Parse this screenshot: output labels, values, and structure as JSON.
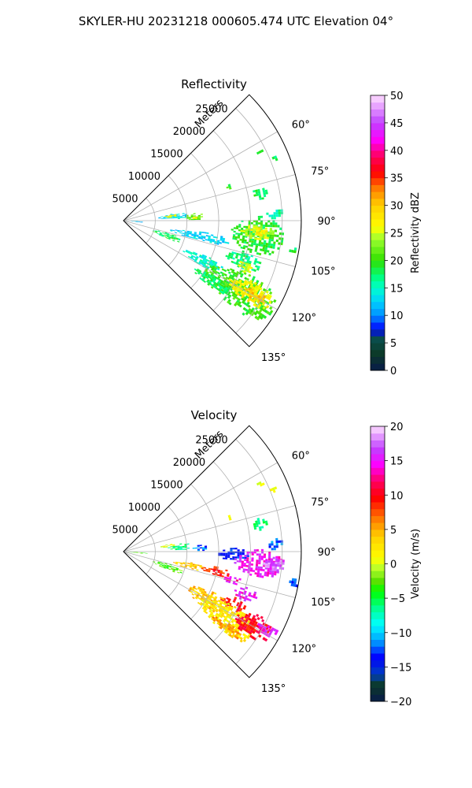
{
  "figure_title": "SKYLER-HU  20231218  000605.474 UTC Elevation 04°",
  "chart_data": [
    {
      "type": "heatmap",
      "projection": "polar-sector",
      "title": "Reflectivity",
      "radial_label": "Meters",
      "radial_ticks": [
        5000,
        10000,
        15000,
        20000,
        25000
      ],
      "radial_tick_labels": [
        "5000",
        "10000",
        "15000",
        "20000",
        "25000"
      ],
      "rmax": 28000,
      "azimuth_range_deg": [
        45,
        135
      ],
      "azimuth_ticks": [
        60,
        75,
        90,
        105,
        120,
        135
      ],
      "azimuth_tick_labels": [
        "60°",
        "75°",
        "90°",
        "105°",
        "120°",
        "135°"
      ],
      "grid": true,
      "colorbar": {
        "label": "Reflectivity dBZ",
        "range": [
          0,
          50
        ],
        "ticks": [
          0,
          5,
          10,
          15,
          20,
          25,
          30,
          35,
          40,
          45,
          50
        ],
        "tick_labels": [
          "0",
          "5",
          "10",
          "15",
          "20",
          "25",
          "30",
          "35",
          "40",
          "45",
          "50"
        ]
      },
      "echo_regions": [
        {
          "az": [
            62,
            64
          ],
          "r": [
            23500,
            24500
          ],
          "value": 20
        },
        {
          "az": [
            66,
            68
          ],
          "r": [
            25000,
            26000
          ],
          "value": 18
        },
        {
          "az": [
            71,
            73
          ],
          "r": [
            17000,
            17800
          ],
          "value": 20
        },
        {
          "az": [
            76,
            81
          ],
          "r": [
            20500,
            22800
          ],
          "value": 18
        },
        {
          "az": [
            82,
            88
          ],
          "r": [
            5500,
            10000
          ],
          "value": 13
        },
        {
          "az": [
            82,
            86
          ],
          "r": [
            6500,
            8500
          ],
          "value": 26
        },
        {
          "az": [
            84,
            89
          ],
          "r": [
            9500,
            13000
          ],
          "value": 22
        },
        {
          "az": [
            86,
            88
          ],
          "r": [
            10500,
            11500
          ],
          "value": 27
        },
        {
          "az": [
            85,
            89
          ],
          "r": [
            22500,
            25000
          ],
          "value": 16
        },
        {
          "az": [
            88,
            104
          ],
          "r": [
            17000,
            25000
          ],
          "value": 19
        },
        {
          "az": [
            91,
            98
          ],
          "r": [
            18500,
            23500
          ],
          "value": 25
        },
        {
          "az": [
            92,
            96
          ],
          "r": [
            20500,
            22500
          ],
          "value": 28
        },
        {
          "az": [
            98,
            101
          ],
          "r": [
            26500,
            28000
          ],
          "value": 18
        },
        {
          "az": [
            92,
            96
          ],
          "r": [
            0,
            3500
          ],
          "value": 12
        },
        {
          "az": [
            98,
            104
          ],
          "r": [
            7500,
            17000
          ],
          "value": 13
        },
        {
          "az": [
            105,
            112
          ],
          "r": [
            4500,
            9500
          ],
          "value": 18
        },
        {
          "az": [
            104,
            112
          ],
          "r": [
            17000,
            22500
          ],
          "value": 17
        },
        {
          "az": [
            108,
            113
          ],
          "r": [
            19000,
            21500
          ],
          "value": 25
        },
        {
          "az": [
            113,
            120
          ],
          "r": [
            10500,
            17500
          ],
          "value": 15
        },
        {
          "az": [
            113,
            128
          ],
          "r": [
            15000,
            27500
          ],
          "value": 20
        },
        {
          "az": [
            115,
            123
          ],
          "r": [
            19000,
            26500
          ],
          "value": 27
        },
        {
          "az": [
            117,
            121
          ],
          "r": [
            22000,
            25500
          ],
          "value": 30
        },
        {
          "az": [
            121,
            127
          ],
          "r": [
            13500,
            20000
          ],
          "value": 18
        }
      ]
    },
    {
      "type": "heatmap",
      "projection": "polar-sector",
      "title": "Velocity",
      "radial_label": "Meters",
      "radial_ticks": [
        5000,
        10000,
        15000,
        20000,
        25000
      ],
      "radial_tick_labels": [
        "5000",
        "10000",
        "15000",
        "20000",
        "25000"
      ],
      "rmax": 28000,
      "azimuth_range_deg": [
        45,
        135
      ],
      "azimuth_ticks": [
        60,
        75,
        90,
        105,
        120,
        135
      ],
      "azimuth_tick_labels": [
        "60°",
        "75°",
        "90°",
        "105°",
        "120°",
        "135°"
      ],
      "grid": true,
      "colorbar": {
        "label": "Velocity (m/s)",
        "range": [
          -20,
          20
        ],
        "ticks": [
          -20,
          -15,
          -10,
          -5,
          0,
          5,
          10,
          15,
          20
        ],
        "tick_labels": [
          "−20",
          "−15",
          "−10",
          "−5",
          "0",
          "5",
          "10",
          "15",
          "20"
        ]
      },
      "echo_regions": [
        {
          "az": [
            62,
            64
          ],
          "r": [
            23500,
            24500
          ],
          "value": 1
        },
        {
          "az": [
            66,
            68
          ],
          "r": [
            25000,
            26000
          ],
          "value": 1
        },
        {
          "az": [
            71,
            73
          ],
          "r": [
            17000,
            17800
          ],
          "value": 2
        },
        {
          "az": [
            76,
            81
          ],
          "r": [
            20500,
            22800
          ],
          "value": -6
        },
        {
          "az": [
            80,
            84
          ],
          "r": [
            5500,
            8000
          ],
          "value": 1
        },
        {
          "az": [
            82,
            88
          ],
          "r": [
            7000,
            10500
          ],
          "value": -6
        },
        {
          "az": [
            85,
            89
          ],
          "r": [
            10500,
            13000
          ],
          "value": -12
        },
        {
          "az": [
            85,
            89
          ],
          "r": [
            22500,
            25000
          ],
          "value": -12
        },
        {
          "az": [
            88,
            94
          ],
          "r": [
            14500,
            19500
          ],
          "value": -14
        },
        {
          "az": [
            89,
            100
          ],
          "r": [
            17500,
            25000
          ],
          "value": 15
        },
        {
          "az": [
            92,
            97
          ],
          "r": [
            22000,
            25500
          ],
          "value": 17
        },
        {
          "az": [
            98,
            101
          ],
          "r": [
            26500,
            28000
          ],
          "value": -12
        },
        {
          "az": [
            92,
            96
          ],
          "r": [
            0,
            3500
          ],
          "value": -2
        },
        {
          "az": [
            99,
            104
          ],
          "r": [
            8000,
            13000
          ],
          "value": 4
        },
        {
          "az": [
            99,
            104
          ],
          "r": [
            12500,
            17000
          ],
          "value": 9
        },
        {
          "az": [
            102,
            106
          ],
          "r": [
            16000,
            19500
          ],
          "value": 14
        },
        {
          "az": [
            105,
            112
          ],
          "r": [
            4500,
            9500
          ],
          "value": -3
        },
        {
          "az": [
            106,
            112
          ],
          "r": [
            18500,
            22000
          ],
          "value": 15
        },
        {
          "az": [
            112,
            118
          ],
          "r": [
            17000,
            21000
          ],
          "value": 10
        },
        {
          "az": [
            114,
            124
          ],
          "r": [
            11500,
            19000
          ],
          "value": 4
        },
        {
          "az": [
            116,
            128
          ],
          "r": [
            14500,
            24000
          ],
          "value": 2
        },
        {
          "az": [
            115,
            124
          ],
          "r": [
            20500,
            26500
          ],
          "value": 10
        },
        {
          "az": [
            116,
            120
          ],
          "r": [
            24000,
            27500
          ],
          "value": 15
        },
        {
          "az": [
            124,
            128
          ],
          "r": [
            17000,
            24000
          ],
          "value": 5
        }
      ]
    }
  ]
}
